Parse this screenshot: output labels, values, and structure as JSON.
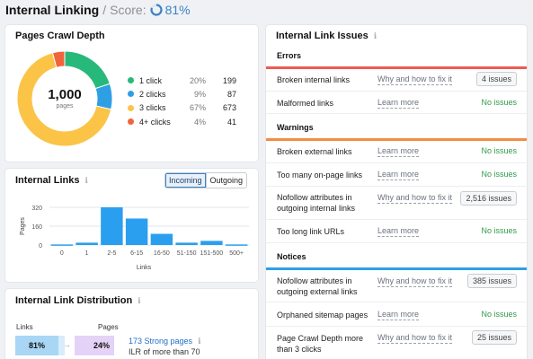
{
  "header": {
    "title": "Internal Linking",
    "separator": "/",
    "score_label": "Score:",
    "score_value": "81%",
    "score_fraction": 0.81,
    "score_color": "#3b82c4"
  },
  "crawl_depth": {
    "title": "Pages Crawl Depth",
    "center_value": "1,000",
    "center_label": "pages",
    "items": [
      {
        "label": "1 click",
        "pct": "20%",
        "count": "199",
        "color": "#27b97a",
        "share": 0.199
      },
      {
        "label": "2 clicks",
        "pct": "9%",
        "count": "87",
        "color": "#2f9fe4",
        "share": 0.087
      },
      {
        "label": "3 clicks",
        "pct": "67%",
        "count": "673",
        "color": "#fbc447",
        "share": 0.673
      },
      {
        "label": "4+ clicks",
        "pct": "4%",
        "count": "41",
        "color": "#f0643c",
        "share": 0.041
      }
    ]
  },
  "internal_links": {
    "title": "Internal Links",
    "toggle": {
      "incoming": "Incoming",
      "outgoing": "Outgoing"
    }
  },
  "chart_data": {
    "type": "bar",
    "categories": [
      "0",
      "1",
      "2-5",
      "6-15",
      "16-50",
      "51-150",
      "151-500",
      "500+"
    ],
    "values": [
      5,
      20,
      320,
      225,
      95,
      20,
      35,
      5
    ],
    "xlabel": "Links",
    "ylabel": "Pages",
    "yticks": [
      0,
      160,
      320
    ],
    "ylim": [
      0,
      320
    ],
    "grid": true,
    "color": "#2a9ff0"
  },
  "distribution": {
    "title": "Internal Link Distribution",
    "links_label": "Links",
    "pages_label": "Pages",
    "links_pct": "81%",
    "pages_pct": "24%",
    "arrow": "→",
    "strong_link": "173 Strong pages",
    "subtext": "ILR of more than 70"
  },
  "issues": {
    "title": "Internal Link Issues",
    "sections": [
      {
        "name": "Errors",
        "color": "#ee5a52",
        "rows": [
          {
            "name": "Broken internal links",
            "link": "Why and how to fix it",
            "status": "4 issues",
            "badge": true
          },
          {
            "name": "Malformed links",
            "link": "Learn more",
            "status": "No issues",
            "badge": false
          }
        ]
      },
      {
        "name": "Warnings",
        "color": "#f28c44",
        "rows": [
          {
            "name": "Broken external links",
            "link": "Learn more",
            "status": "No issues",
            "badge": false
          },
          {
            "name": "Too many on-page links",
            "link": "Learn more",
            "status": "No issues",
            "badge": false
          },
          {
            "name": "Nofollow attributes in outgoing internal links",
            "link": "Why and how to fix it",
            "status": "2,516 issues",
            "badge": true
          },
          {
            "name": "Too long link URLs",
            "link": "Learn more",
            "status": "No issues",
            "badge": false
          }
        ]
      },
      {
        "name": "Notices",
        "color": "#2f9fe4",
        "rows": [
          {
            "name": "Nofollow attributes in outgoing external links",
            "link": "Why and how to fix it",
            "status": "385 issues",
            "badge": true
          },
          {
            "name": "Orphaned sitemap pages",
            "link": "Learn more",
            "status": "No issues",
            "badge": false
          },
          {
            "name": "Page Crawl Depth more than 3 clicks",
            "link": "Why and how to fix it",
            "status": "25 issues",
            "badge": true
          }
        ]
      }
    ]
  }
}
